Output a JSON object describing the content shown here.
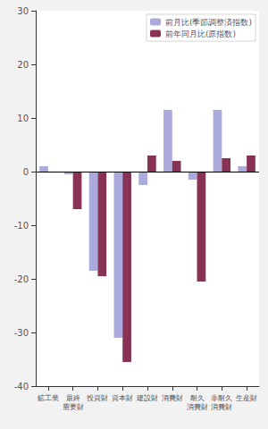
{
  "chart_data": {
    "type": "bar",
    "categories": [
      "鉱工業",
      "最終\n需要財",
      "投資財",
      "資本財",
      "建設財",
      "消費財",
      "耐久\n消費財",
      "非耐久\n消費財",
      "生産財"
    ],
    "series": [
      {
        "name": "前月比(季節調整済指数)",
        "color": "#aaaadd",
        "values": [
          1.0,
          -0.5,
          -18.5,
          -31.0,
          -2.5,
          11.5,
          -1.5,
          11.5,
          1.0
        ]
      },
      {
        "name": "前年同月比(原指数)",
        "color": "#883355",
        "values": [
          0.0,
          -7.0,
          -19.5,
          -35.5,
          3.0,
          2.0,
          -20.5,
          2.5,
          3.0
        ]
      }
    ],
    "ylim": [
      -40,
      30
    ],
    "yticks": [
      -40,
      -30,
      -20,
      -10,
      0,
      10,
      20,
      30
    ],
    "grid": false,
    "legend": "upper right"
  }
}
